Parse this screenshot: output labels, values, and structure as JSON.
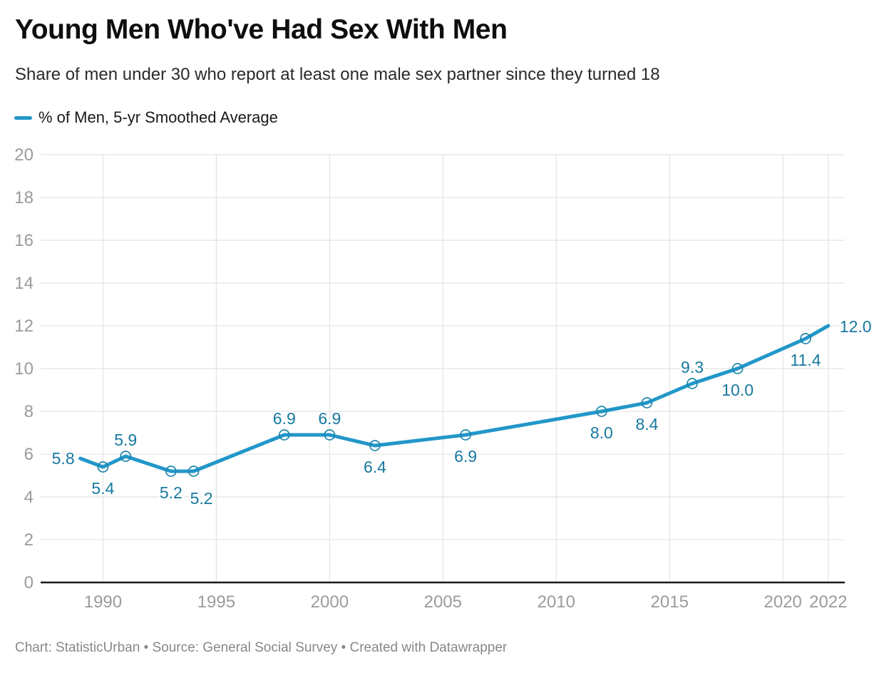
{
  "footer": {
    "text": "Chart: StatisticUrban • Source: General Social Survey • Created with Datawrapper"
  },
  "colors": {
    "line": "#2297c9",
    "marker_stroke": "#1e86ad",
    "value_label": "#17789f",
    "axis_label": "#9b9b9b",
    "gridline": "#e3e3e3",
    "baseline": "#18191c",
    "title": "#0e0e0e",
    "subtitle": "#2a2a2a",
    "footer": "#888888"
  },
  "chart_data": {
    "type": "line",
    "title": "Young Men Who've Had Sex With Men",
    "subtitle": "Share of men under 30 who report at least one male sex partner since they turned 18",
    "xlabel": "",
    "ylabel": "",
    "grid": true,
    "legend_position": "top-left",
    "x_ticks": [
      1990,
      1995,
      2000,
      2005,
      2010,
      2015,
      2020,
      2022
    ],
    "y_ticks": [
      0,
      2,
      4,
      6,
      8,
      10,
      12,
      14,
      16,
      18,
      20
    ],
    "x_range": [
      1987.25,
      2022.73
    ],
    "y_range": [
      0,
      20
    ],
    "series": [
      {
        "name": "% of Men, 5-yr Smoothed Average",
        "points": [
          {
            "x": 1989,
            "y": 5.8,
            "label": "5.8",
            "label_pos": "left",
            "marker": false
          },
          {
            "x": 1990,
            "y": 5.4,
            "label": "5.4",
            "label_pos": "below",
            "marker": true
          },
          {
            "x": 1991,
            "y": 5.9,
            "label": "5.9",
            "label_pos": "above",
            "marker": true
          },
          {
            "x": 1993,
            "y": 5.2,
            "label": "5.2",
            "label_pos": "below",
            "marker": true
          },
          {
            "x": 1994,
            "y": 5.2,
            "label": "5.2",
            "label_pos": "below-right",
            "marker": true
          },
          {
            "x": 1998,
            "y": 6.9,
            "label": "6.9",
            "label_pos": "above",
            "marker": true
          },
          {
            "x": 2000,
            "y": 6.9,
            "label": "6.9",
            "label_pos": "above",
            "marker": true
          },
          {
            "x": 2002,
            "y": 6.4,
            "label": "6.4",
            "label_pos": "below",
            "marker": true
          },
          {
            "x": 2006,
            "y": 6.9,
            "label": "6.9",
            "label_pos": "below",
            "marker": true
          },
          {
            "x": 2012,
            "y": 8.0,
            "label": "8.0",
            "label_pos": "below",
            "marker": true
          },
          {
            "x": 2014,
            "y": 8.4,
            "label": "8.4",
            "label_pos": "below",
            "marker": true
          },
          {
            "x": 2016,
            "y": 9.3,
            "label": "9.3",
            "label_pos": "above",
            "marker": true
          },
          {
            "x": 2018,
            "y": 10.0,
            "label": "10.0",
            "label_pos": "below",
            "marker": true
          },
          {
            "x": 2021,
            "y": 11.4,
            "label": "11.4",
            "label_pos": "below",
            "marker": true
          },
          {
            "x": 2022,
            "y": 12.0,
            "label": "12.0",
            "label_pos": "right",
            "marker": false
          }
        ]
      }
    ]
  }
}
